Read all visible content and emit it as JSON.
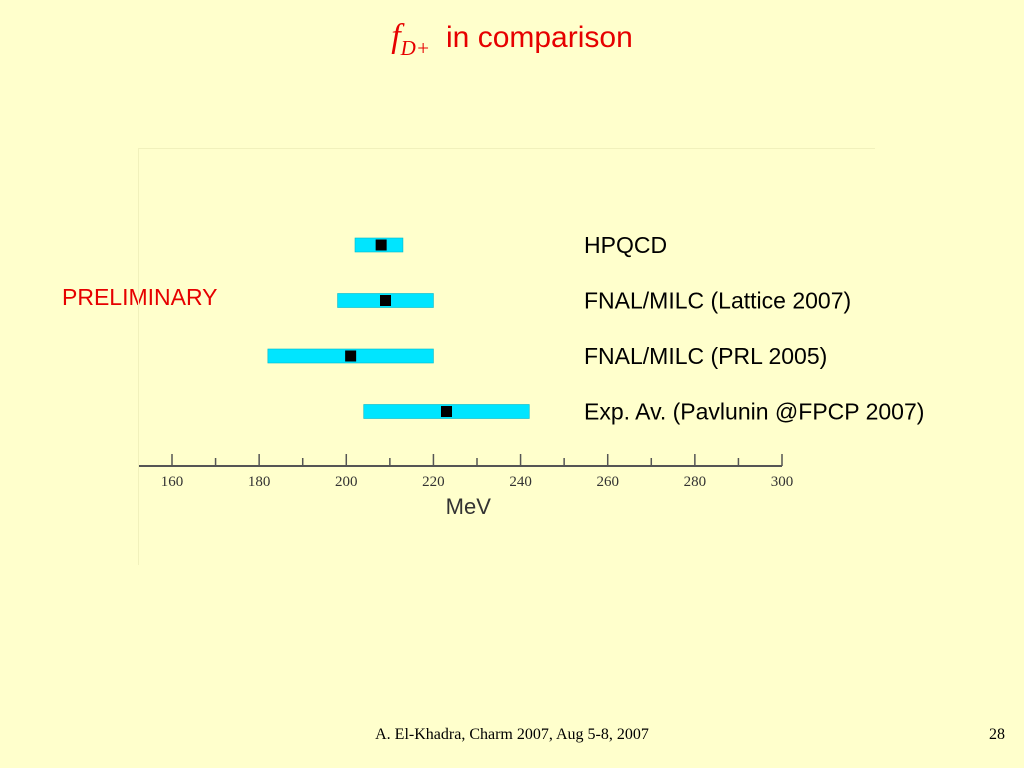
{
  "title": {
    "symbol": "f",
    "subscript": "D+",
    "text": "in comparison"
  },
  "annotation": "PRELIMINARY",
  "footer": {
    "text": "A. El-Khadra, Charm 2007, Aug 5-8, 2007",
    "page": "28"
  },
  "colors": {
    "background": "#ffffcc",
    "accent": "#e60000",
    "bar": "#00e5ff",
    "marker": "#000000"
  },
  "chart_data": {
    "type": "error-bar",
    "xlabel": "MeV",
    "xlim": [
      160,
      300
    ],
    "ticks": [
      160,
      180,
      200,
      220,
      240,
      260,
      280,
      300
    ],
    "minor_step": 10,
    "grid": false,
    "series": [
      {
        "name": "HPQCD",
        "value": 208,
        "low": 202,
        "high": 213
      },
      {
        "name": "FNAL/MILC (Lattice 2007)",
        "value": 209,
        "low": 198,
        "high": 220
      },
      {
        "name": "FNAL/MILC (PRL 2005)",
        "value": 201,
        "low": 182,
        "high": 220
      },
      {
        "name": "Exp. Av. (Pavlunin @FPCP 2007)",
        "value": 223,
        "low": 204,
        "high": 242
      }
    ]
  }
}
